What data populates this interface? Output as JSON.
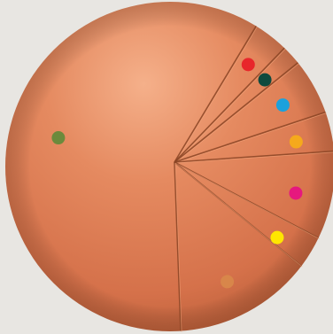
{
  "chart_data": {
    "type": "pie",
    "title": "",
    "legend": "none",
    "slices": [
      {
        "value": 3.6,
        "marker_color": "#e8262b"
      },
      {
        "value": 2.0,
        "marker_color": "#0e4a3e"
      },
      {
        "value": 5.7,
        "marker_color": "#1ba1dc"
      },
      {
        "value": 4.0,
        "marker_color": "#f5a91c"
      },
      {
        "value": 8.8,
        "marker_color": "#e6187e"
      },
      {
        "value": 3.2,
        "marker_color": "#ffe600"
      },
      {
        "value": 13.5,
        "marker_color": "#d8864a"
      },
      {
        "value": 59.2,
        "marker_color": "#6c8a3c"
      }
    ]
  },
  "colors": {
    "background": "#e8e6e2",
    "sphere_base": "#d5714a",
    "sphere_highlight": "#f5b08a",
    "sphere_shadow": "#b35a35",
    "divider_line": "#8a4424"
  }
}
